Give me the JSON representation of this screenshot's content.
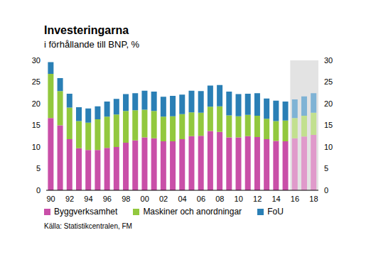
{
  "chart_data": {
    "type": "bar",
    "title": "Investeringarna",
    "subtitle": "i förhållande till BNP, %",
    "source": "Källa: Statistikcentralen, FM",
    "stacked": true,
    "grid": false,
    "legend": "bottom left",
    "categories": [
      "90",
      null,
      "92",
      null,
      "94",
      null,
      "96",
      null,
      "98",
      null,
      "00",
      null,
      "02",
      null,
      "04",
      null,
      "06",
      null,
      "08",
      null,
      "10",
      null,
      "12",
      null,
      "14",
      null,
      "16",
      null,
      "18"
    ],
    "ylim": [
      0,
      30
    ],
    "yticks": [
      0,
      5,
      10,
      15,
      20,
      25,
      30
    ],
    "y2lim": [
      0,
      30
    ],
    "y2ticks": [
      0,
      5,
      10,
      15,
      20,
      25,
      30
    ],
    "series": [
      {
        "name": "Byggverksamhet",
        "color": "#c94fa8",
        "colors": [
          "#c94fa8",
          "#c94fa8",
          "#c94fa8",
          "#c94fa8",
          "#c94fa8",
          "#c94fa8",
          "#c94fa8",
          "#c94fa8",
          "#c94fa8",
          "#c94fa8",
          "#c94fa8",
          "#c94fa8",
          "#c94fa8",
          "#c94fa8",
          "#c94fa8",
          "#c94fa8",
          "#c94fa8",
          "#c94fa8",
          "#c94fa8",
          "#c94fa8",
          "#c94fa8",
          "#c94fa8",
          "#c94fa8",
          "#c94fa8",
          "#c94fa8",
          "#c94fa8",
          "#e09acb",
          "#e09acb",
          "#e09acb"
        ],
        "values": [
          16.7,
          15.0,
          11.8,
          9.7,
          9.3,
          9.3,
          9.8,
          10.0,
          11.0,
          11.5,
          12.2,
          12.0,
          11.3,
          11.3,
          11.8,
          12.5,
          12.6,
          13.7,
          13.5,
          12.2,
          12.2,
          12.5,
          12.3,
          11.8,
          11.4,
          11.3,
          12.0,
          12.4,
          12.8
        ]
      },
      {
        "name": "Maskiner och anordningar",
        "color": "#92c83e",
        "colors": [
          "#92c83e",
          "#92c83e",
          "#92c83e",
          "#92c83e",
          "#92c83e",
          "#92c83e",
          "#92c83e",
          "#92c83e",
          "#92c83e",
          "#92c83e",
          "#92c83e",
          "#92c83e",
          "#92c83e",
          "#92c83e",
          "#92c83e",
          "#92c83e",
          "#92c83e",
          "#92c83e",
          "#92c83e",
          "#92c83e",
          "#92c83e",
          "#92c83e",
          "#92c83e",
          "#92c83e",
          "#92c83e",
          "#92c83e",
          "#c2e08f",
          "#c2e08f",
          "#c2e08f"
        ],
        "values": [
          10.2,
          7.9,
          7.3,
          6.3,
          6.3,
          7.1,
          7.2,
          7.5,
          7.3,
          7.0,
          6.4,
          6.3,
          5.7,
          5.8,
          5.8,
          5.5,
          5.3,
          5.6,
          5.9,
          5.1,
          4.9,
          4.9,
          4.9,
          4.7,
          4.6,
          4.8,
          4.7,
          4.8,
          5.1
        ]
      },
      {
        "name": "FoU",
        "color": "#2a7fb5",
        "colors": [
          "#2a7fb5",
          "#2a7fb5",
          "#2a7fb5",
          "#2a7fb5",
          "#2a7fb5",
          "#2a7fb5",
          "#2a7fb5",
          "#2a7fb5",
          "#2a7fb5",
          "#2a7fb5",
          "#2a7fb5",
          "#2a7fb5",
          "#2a7fb5",
          "#2a7fb5",
          "#2a7fb5",
          "#2a7fb5",
          "#2a7fb5",
          "#2a7fb5",
          "#2a7fb5",
          "#2a7fb5",
          "#2a7fb5",
          "#2a7fb5",
          "#2a7fb5",
          "#2a7fb5",
          "#2a7fb5",
          "#2a7fb5",
          "#7fb3d5",
          "#7fb3d5",
          "#7fb3d5"
        ],
        "values": [
          2.7,
          3.0,
          3.2,
          3.2,
          3.3,
          3.0,
          3.5,
          3.6,
          3.9,
          3.9,
          4.4,
          4.5,
          4.6,
          4.7,
          4.5,
          5.0,
          5.0,
          4.9,
          4.9,
          5.5,
          5.1,
          4.9,
          5.2,
          4.7,
          4.7,
          4.4,
          4.3,
          4.5,
          4.5
        ]
      }
    ]
  }
}
